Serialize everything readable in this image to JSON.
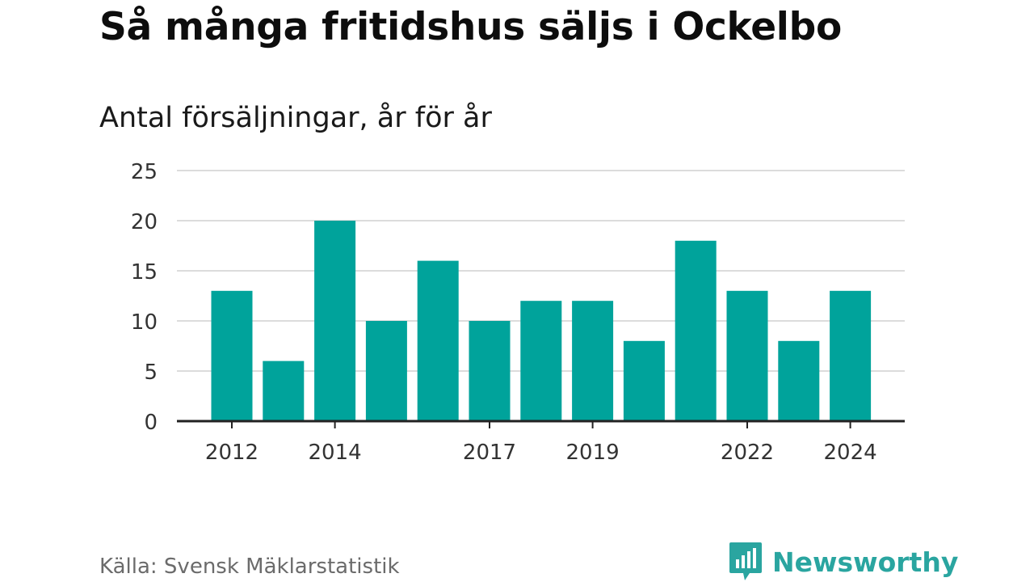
{
  "title": "Så många fritidshus säljs i Ockelbo",
  "subtitle": "Antal försäljningar, år för år",
  "source": "Källa: Svensk Mäklarstatistik",
  "brand": {
    "name": "Newsworthy",
    "icon": "newsworthy-logo-icon",
    "color": "#2aa5a0"
  },
  "chart_data": {
    "type": "bar",
    "categories": [
      2012,
      2013,
      2014,
      2015,
      2016,
      2017,
      2018,
      2019,
      2020,
      2021,
      2022,
      2023,
      2024
    ],
    "values": [
      13,
      6,
      20,
      10,
      16,
      10,
      12,
      12,
      8,
      18,
      13,
      8,
      13
    ],
    "x_tick_labels": [
      "2012",
      "2014",
      "2017",
      "2019",
      "2022",
      "2024"
    ],
    "y_ticks": [
      0,
      5,
      10,
      15,
      20,
      25
    ],
    "ylim": [
      0,
      25
    ],
    "grid": true,
    "bar_color": "#00a39b"
  }
}
